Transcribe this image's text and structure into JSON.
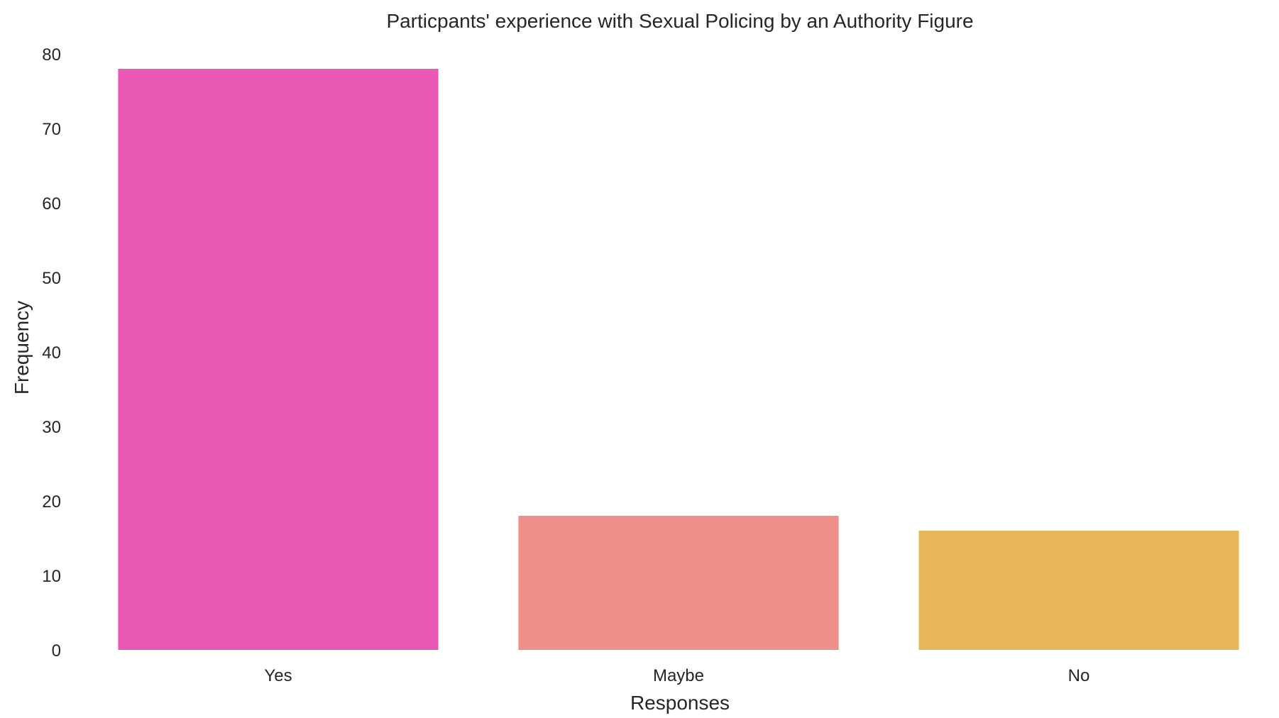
{
  "chart_data": {
    "type": "bar",
    "title": "Particpants' experience with Sexual Policing by an Authority Figure",
    "xlabel": "Responses",
    "ylabel": "Frequency",
    "categories": [
      "Yes",
      "Maybe",
      "No"
    ],
    "values": [
      78,
      18,
      16
    ],
    "colors": [
      "#e858b4",
      "#ef8f8a",
      "#e8b75a"
    ],
    "ylim": [
      0,
      80
    ],
    "yticks": [
      0,
      10,
      20,
      30,
      40,
      50,
      60,
      70,
      80
    ],
    "grid": false,
    "legend": "none"
  }
}
